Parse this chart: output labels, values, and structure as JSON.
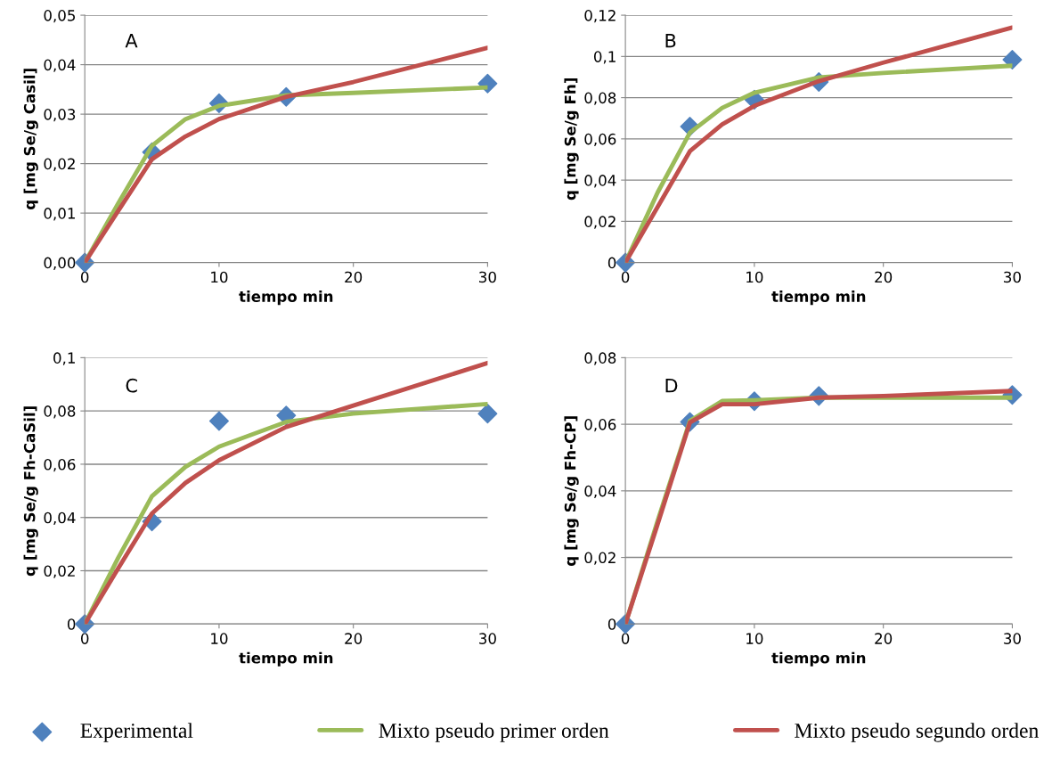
{
  "chart_data": [
    {
      "type": "line",
      "xlabel": "tiempo min",
      "ylabel": "q [mg Se/g Casil]",
      "annotations": [
        "A"
      ],
      "xlim": [
        0,
        30
      ],
      "xticks": [
        0,
        10,
        20,
        30
      ],
      "ylim": [
        0,
        0.05
      ],
      "yticks": [
        {
          "value": 0,
          "label": "0,00"
        },
        {
          "value": 0.01,
          "label": "0,01"
        },
        {
          "value": 0.02,
          "label": "0,02"
        },
        {
          "value": 0.03,
          "label": "0,03"
        },
        {
          "value": 0.04,
          "label": "0,04"
        },
        {
          "value": 0.05,
          "label": "0,05"
        }
      ],
      "grid": "y",
      "legend": "bottom",
      "series": [
        {
          "name": "Experimental",
          "type": "scatter",
          "marker": "diamond",
          "color": "#4f81bd",
          "x": [
            0,
            5,
            10,
            15,
            30
          ],
          "values": [
            0,
            0.0223,
            0.0322,
            0.0335,
            0.0362
          ]
        },
        {
          "name": "Mixto pseudo primer orden",
          "marker": "none",
          "color": "#9bbb59",
          "x": [
            0,
            2.5,
            5,
            7.5,
            10,
            15,
            20,
            30
          ],
          "values": [
            0,
            0.012,
            0.0236,
            0.029,
            0.0317,
            0.0338,
            0.0343,
            0.0354
          ]
        },
        {
          "name": "Mixto pseudo segundo orden",
          "marker": "none",
          "color": "#c0504d",
          "x": [
            0,
            2.5,
            5,
            7.5,
            10,
            15,
            20,
            30
          ],
          "values": [
            0,
            0.0105,
            0.0209,
            0.0255,
            0.029,
            0.0335,
            0.0365,
            0.0434
          ]
        }
      ]
    },
    {
      "type": "line",
      "xlabel": "tiempo min",
      "ylabel": "q [mg Se/g Fh]",
      "annotations": [
        "B"
      ],
      "xlim": [
        0,
        30
      ],
      "xticks": [
        0,
        10,
        20,
        30
      ],
      "ylim": [
        0,
        0.12
      ],
      "yticks": [
        0,
        {
          "value": 0.02,
          "label": "0,02"
        },
        {
          "value": 0.04,
          "label": "0,04"
        },
        {
          "value": 0.06,
          "label": "0,06"
        },
        {
          "value": 0.08,
          "label": "0,08"
        },
        {
          "value": 0.1,
          "label": "0,1"
        },
        {
          "value": 0.12,
          "label": "0,12"
        }
      ],
      "grid": "y",
      "series": [
        {
          "type": "scatter",
          "marker": "diamond",
          "color": "#4f81bd",
          "x": [
            0,
            5,
            10,
            15,
            30
          ],
          "values": [
            0,
            0.066,
            0.079,
            0.0876,
            0.0984
          ]
        },
        {
          "marker": "none",
          "color": "#9bbb59",
          "x": [
            0,
            2.5,
            5,
            7.5,
            10,
            15,
            20,
            30
          ],
          "values": [
            0,
            0.034,
            0.063,
            0.075,
            0.0824,
            0.0898,
            0.092,
            0.0955
          ]
        },
        {
          "marker": "none",
          "color": "#c0504d",
          "x": [
            0,
            2.5,
            5,
            7.5,
            10,
            15,
            20,
            30
          ],
          "values": [
            0,
            0.027,
            0.054,
            0.067,
            0.076,
            0.088,
            0.097,
            0.114
          ]
        }
      ]
    },
    {
      "type": "line",
      "xlabel": "tiempo min",
      "ylabel": "q [mg Se/g Fh-CaSil]",
      "annotations": [
        "C"
      ],
      "xlim": [
        0,
        30
      ],
      "xticks": [
        0,
        10,
        20,
        30
      ],
      "ylim": [
        0,
        0.1
      ],
      "yticks": [
        0,
        {
          "value": 0.02,
          "label": "0,02"
        },
        {
          "value": 0.04,
          "label": "0,04"
        },
        {
          "value": 0.06,
          "label": "0,06"
        },
        {
          "value": 0.08,
          "label": "0,08"
        },
        {
          "value": 0.1,
          "label": "0,1"
        }
      ],
      "grid": "y",
      "series": [
        {
          "type": "scatter",
          "marker": "diamond",
          "color": "#4f81bd",
          "x": [
            0,
            5,
            10,
            15,
            30
          ],
          "values": [
            0,
            0.0385,
            0.0762,
            0.0783,
            0.079
          ]
        },
        {
          "marker": "none",
          "color": "#9bbb59",
          "x": [
            0,
            2.5,
            5,
            7.5,
            10,
            15,
            20,
            30
          ],
          "values": [
            0,
            0.025,
            0.048,
            0.059,
            0.0666,
            0.0759,
            0.079,
            0.0826
          ]
        },
        {
          "marker": "none",
          "color": "#c0504d",
          "x": [
            0,
            2.5,
            5,
            7.5,
            10,
            15,
            20,
            30
          ],
          "values": [
            0,
            0.021,
            0.0415,
            0.053,
            0.0615,
            0.074,
            0.082,
            0.098
          ]
        }
      ]
    },
    {
      "type": "line",
      "xlabel": "tiempo min",
      "ylabel": "q [mg Se/g Fh-CP]",
      "annotations": [
        "D"
      ],
      "xlim": [
        0,
        30
      ],
      "xticks": [
        0,
        10,
        20,
        30
      ],
      "ylim": [
        0,
        0.08
      ],
      "yticks": [
        0,
        {
          "value": 0.02,
          "label": "0,02"
        },
        {
          "value": 0.04,
          "label": "0,04"
        },
        {
          "value": 0.06,
          "label": "0,06"
        },
        {
          "value": 0.08,
          "label": "0,08"
        }
      ],
      "grid": "y",
      "series": [
        {
          "type": "scatter",
          "marker": "diamond",
          "color": "#4f81bd",
          "x": [
            0,
            5,
            10,
            15,
            30
          ],
          "values": [
            0,
            0.0607,
            0.0669,
            0.0685,
            0.0688
          ]
        },
        {
          "marker": "none",
          "color": "#9bbb59",
          "x": [
            0,
            2.5,
            5,
            7.5,
            10,
            15,
            20,
            30
          ],
          "values": [
            0,
            0.031,
            0.061,
            0.067,
            0.0672,
            0.068,
            0.068,
            0.068
          ]
        },
        {
          "marker": "none",
          "color": "#c0504d",
          "x": [
            0,
            2.5,
            5,
            7.5,
            10,
            15,
            20,
            30
          ],
          "values": [
            0,
            0.03,
            0.0605,
            0.066,
            0.066,
            0.068,
            0.0685,
            0.07
          ]
        }
      ]
    }
  ]
}
